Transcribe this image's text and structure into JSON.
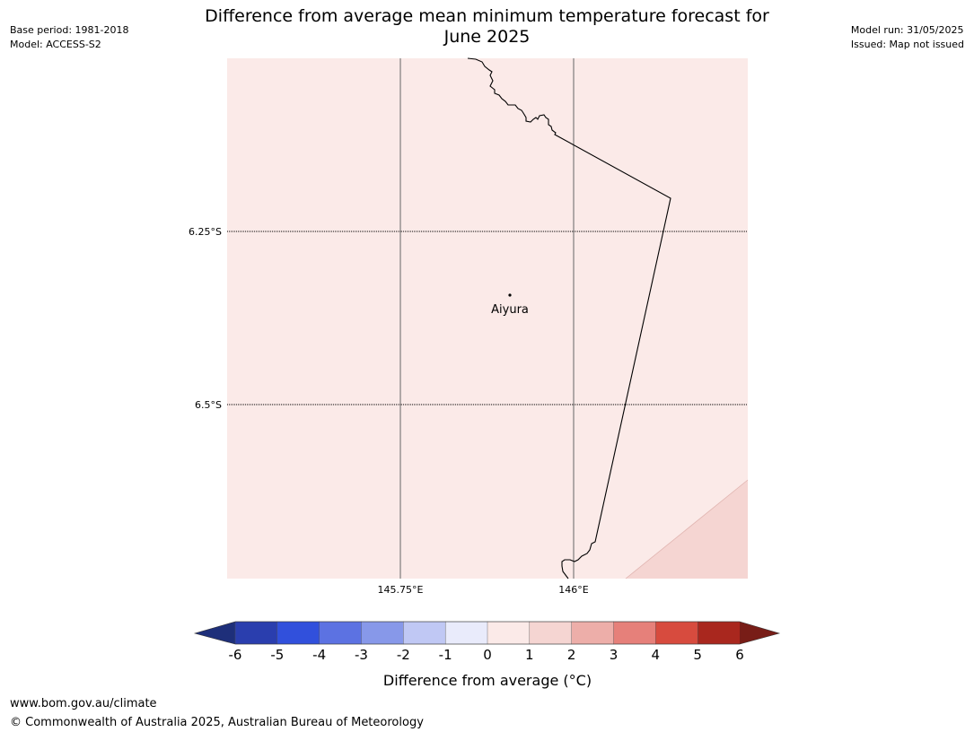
{
  "header": {
    "base_period": "Base period: 1981-2018",
    "model": "Model: ACCESS-S2",
    "model_run": "Model run: 31/05/2025",
    "issued": "Issued: Map not issued",
    "title_line1": "Difference from average mean minimum temperature forecast for",
    "title_line2": "June 2025"
  },
  "map": {
    "latitude_labels": [
      "6.25°S",
      "6.5°S"
    ],
    "longitude_labels": [
      "145.75°E",
      "146°E"
    ],
    "places": [
      {
        "name": "Aiyura"
      }
    ],
    "colors": {
      "background_band": "#fbeae8",
      "warm_band": "#f5d5d2",
      "coastline": "#000000",
      "gridline": "#555555"
    }
  },
  "colorbar": {
    "title": "Difference from average (°C)",
    "tick_labels": [
      "-6",
      "-5",
      "-4",
      "-3",
      "-2",
      "-1",
      "0",
      "1",
      "2",
      "3",
      "4",
      "5",
      "6"
    ],
    "colors": {
      "below_min": "#1e2f7a",
      "bands": [
        "#2a3eae",
        "#3150dc",
        "#5c72e2",
        "#8798e9",
        "#c0c8f4",
        "#e9ebfb",
        "#fbeae8",
        "#f5d5d2",
        "#edaea9",
        "#e6807a",
        "#d74b3e",
        "#a9271e"
      ],
      "above_max": "#781d17"
    }
  },
  "footer": {
    "url": "www.bom.gov.au/climate",
    "copyright": "© Commonwealth of Australia 2025, Australian Bureau of Meteorology"
  }
}
